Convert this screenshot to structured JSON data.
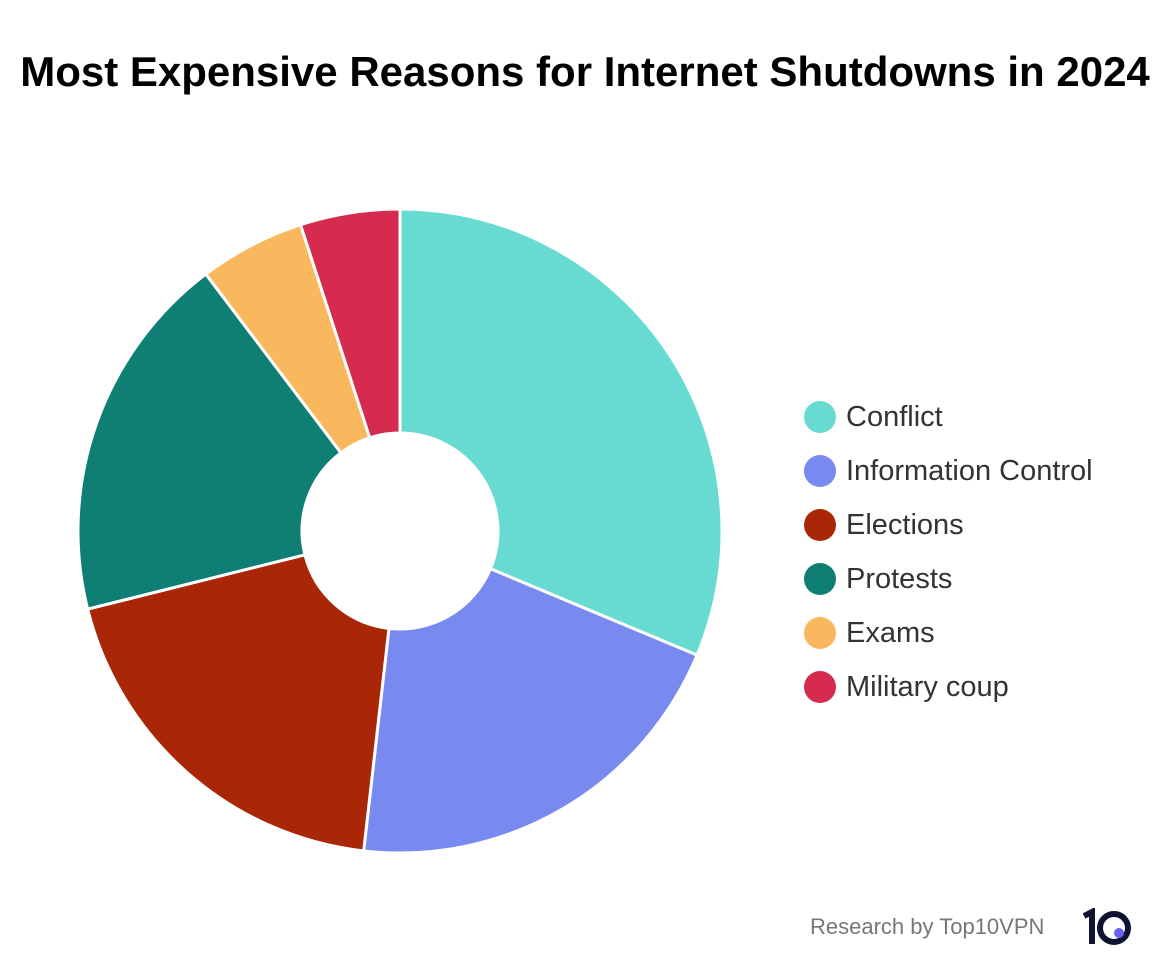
{
  "chart_data": {
    "type": "pie",
    "donut": true,
    "title": "Most Expensive Reasons for Internet Shutdowns in 2024",
    "categories": [
      "Conflict",
      "Information Control",
      "Elections",
      "Protests",
      "Exams",
      "Military coup"
    ],
    "values": [
      31.3,
      20.5,
      19.3,
      18.6,
      5.3,
      5.0
    ],
    "colors": [
      "#67dbd1",
      "#7889f0",
      "#a92606",
      "#0f7f74",
      "#fab85e",
      "#d42b4f"
    ],
    "legend_placement": "right"
  },
  "footer": {
    "credit": "Research by Top10VPN",
    "logo_text": "10"
  }
}
